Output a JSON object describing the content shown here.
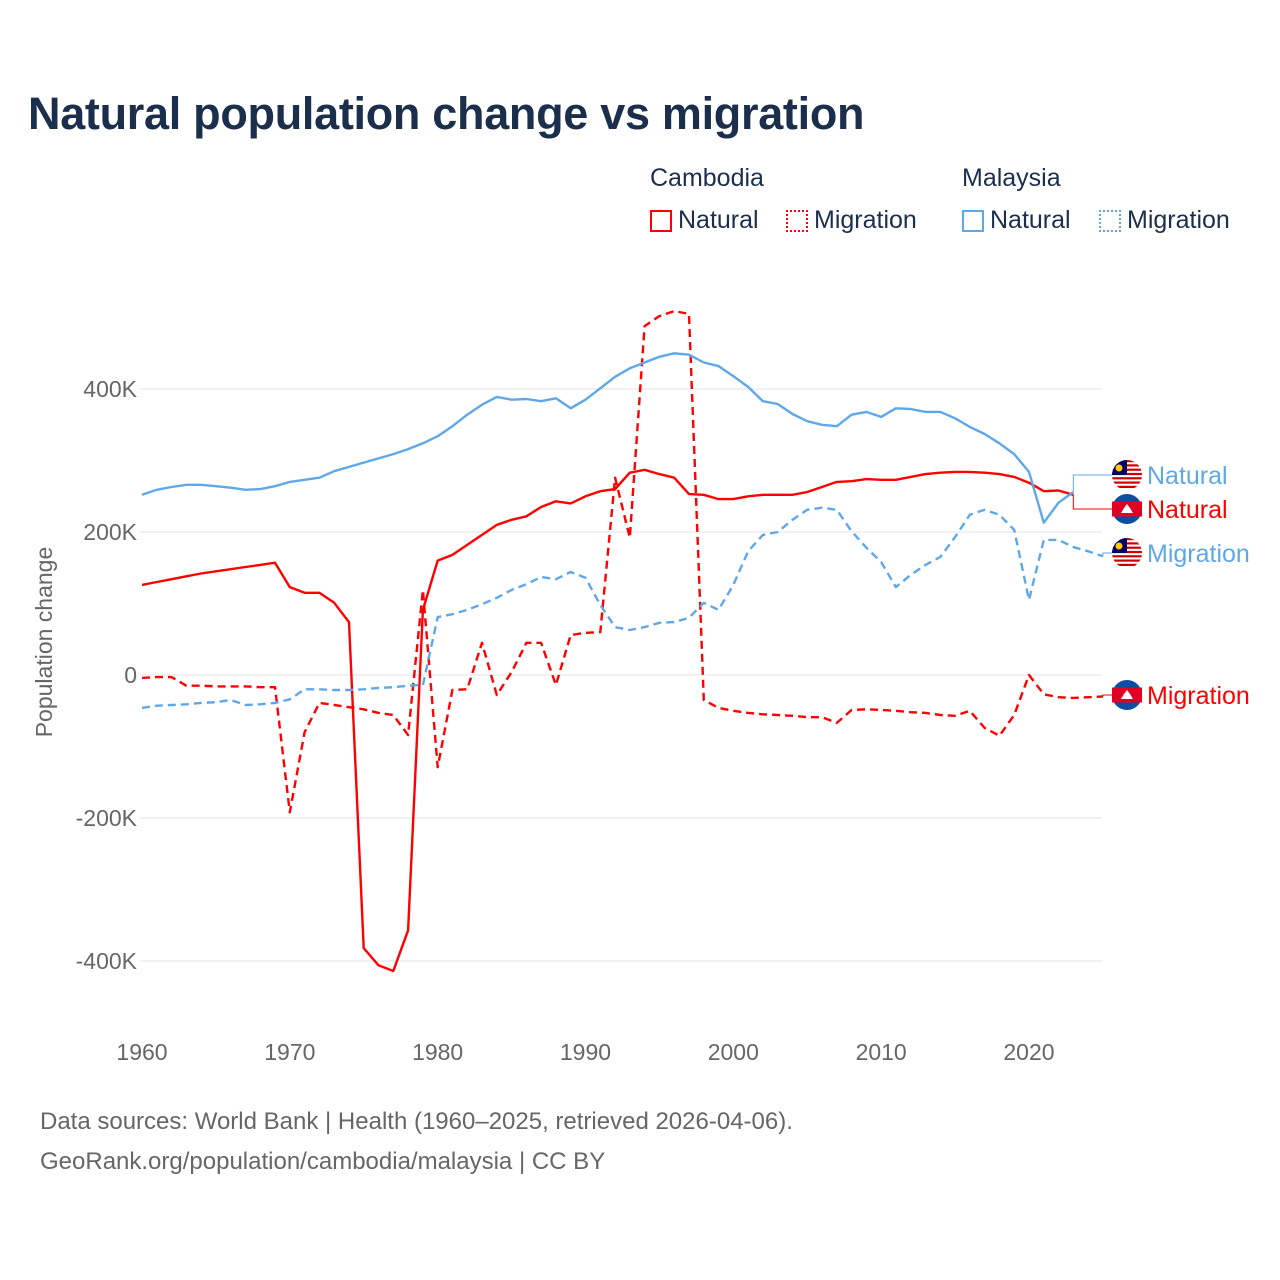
{
  "title": "Natural population change vs migration",
  "legend": {
    "groups": [
      {
        "name": "Cambodia",
        "items": [
          "Natural",
          "Migration"
        ]
      },
      {
        "name": "Malaysia",
        "items": [
          "Natural",
          "Migration"
        ]
      }
    ]
  },
  "footer": {
    "line1": "Data sources: World Bank | Health (1960–2025, retrieved 2026-04-06).",
    "line2": "GeoRank.org/population/cambodia/malaysia | CC BY"
  },
  "colors": {
    "cambodia": "#ff0000",
    "malaysia": "#5fa8e8",
    "title": "#1b2e4b"
  },
  "chart_data": {
    "type": "line",
    "title": "Natural population change vs migration",
    "xlabel": "",
    "ylabel": "Population change",
    "xlim": [
      1960,
      2025
    ],
    "ylim": [
      -450000,
      520000
    ],
    "x_ticks": [
      1960,
      1970,
      1980,
      1990,
      2000,
      2010,
      2020
    ],
    "x_tick_labels": [
      "1960",
      "1970",
      "1980",
      "1990",
      "2000",
      "2010",
      "2020"
    ],
    "y_ticks": [
      -400000,
      -200000,
      0,
      200000,
      400000
    ],
    "y_tick_labels": [
      "-400K",
      "-200K",
      "0",
      "200K",
      "400K"
    ],
    "grid": true,
    "legend_position": "top-right",
    "series": [
      {
        "name": "Natural",
        "country": "Cambodia",
        "flag": "cambodia-flag",
        "style": "solid",
        "color": "#ff0000",
        "start_year": 1960,
        "values_k": [
          126,
          130,
          134,
          138,
          142,
          145,
          148,
          151,
          154,
          157,
          123,
          115,
          115,
          101,
          74,
          -382,
          -406,
          -414,
          -357,
          91,
          160,
          168,
          182,
          196,
          210,
          217,
          222,
          235,
          243,
          240,
          250,
          257,
          260,
          283,
          287,
          281,
          276,
          253,
          252,
          246,
          246,
          250,
          252,
          252,
          252,
          256,
          263,
          270,
          271,
          274,
          273,
          273,
          277,
          281,
          283,
          284,
          284,
          283,
          281,
          277,
          269,
          257,
          258,
          252
        ]
      },
      {
        "name": "Migration",
        "country": "Cambodia",
        "flag": "cambodia-flag",
        "style": "dashed",
        "color": "#ff0000",
        "start_year": 1960,
        "values_k": [
          -4,
          -3,
          -3,
          -15,
          -15,
          -16,
          -16,
          -16,
          -17,
          -17,
          -192,
          -80,
          -39,
          -42,
          -45,
          -48,
          -53,
          -56,
          -84,
          119,
          -129,
          -21,
          -20,
          45,
          -28,
          4,
          45,
          45,
          -14,
          56,
          59,
          60,
          276,
          192,
          488,
          502,
          509,
          505,
          -35,
          -46,
          -50,
          -53,
          -55,
          -56,
          -57,
          -59,
          -59,
          -67,
          -49,
          -48,
          -49,
          -50,
          -52,
          -53,
          -56,
          -57,
          -50,
          -74,
          -85,
          -56,
          0,
          -27,
          -31,
          -32,
          -31,
          -30
        ]
      },
      {
        "name": "Natural",
        "country": "Malaysia",
        "flag": "malaysia-flag",
        "style": "solid",
        "color": "#5fa8e8",
        "start_year": 1960,
        "values_k": [
          252,
          259,
          263,
          266,
          266,
          264,
          262,
          259,
          260,
          264,
          270,
          273,
          276,
          285,
          291,
          297,
          303,
          309,
          316,
          324,
          334,
          348,
          364,
          378,
          389,
          385,
          386,
          383,
          387,
          373,
          385,
          401,
          417,
          429,
          437,
          445,
          450,
          448,
          437,
          432,
          418,
          403,
          383,
          379,
          365,
          355,
          350,
          348,
          364,
          368,
          361,
          373,
          372,
          368,
          368,
          359,
          347,
          337,
          324,
          309,
          284,
          213,
          241,
          256
        ]
      },
      {
        "name": "Migration",
        "country": "Malaysia",
        "flag": "malaysia-flag",
        "style": "dashed",
        "color": "#5fa8e8",
        "start_year": 1960,
        "values_k": [
          -46,
          -43,
          -42,
          -41,
          -39,
          -38,
          -35,
          -42,
          -41,
          -39,
          -34,
          -20,
          -20,
          -21,
          -21,
          -20,
          -18,
          -17,
          -15,
          -14,
          81,
          85,
          91,
          99,
          108,
          119,
          127,
          137,
          134,
          144,
          136,
          98,
          67,
          63,
          67,
          73,
          74,
          80,
          101,
          91,
          126,
          173,
          196,
          200,
          217,
          231,
          234,
          231,
          201,
          178,
          158,
          123,
          140,
          154,
          165,
          193,
          224,
          231,
          224,
          203,
          105,
          189,
          189,
          179,
          173,
          166
        ]
      }
    ],
    "end_labels": [
      {
        "text": "Natural",
        "country": "Malaysia"
      },
      {
        "text": "Natural",
        "country": "Cambodia"
      },
      {
        "text": "Migration",
        "country": "Malaysia"
      },
      {
        "text": "Migration",
        "country": "Cambodia"
      }
    ]
  }
}
